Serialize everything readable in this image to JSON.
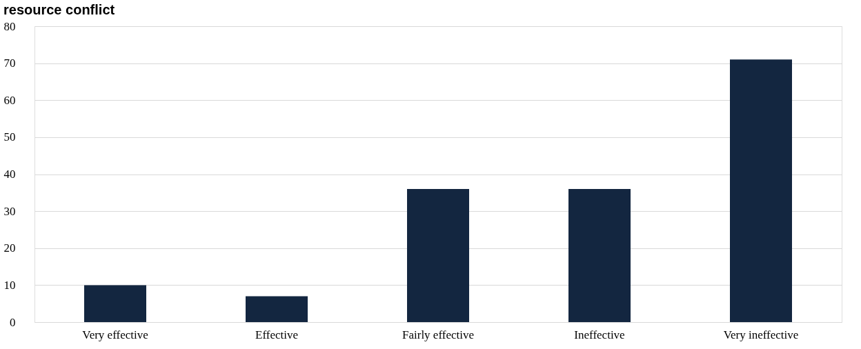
{
  "chart_data": {
    "type": "bar",
    "title": "resource conflict",
    "categories": [
      "Very effective",
      "Effective",
      "Fairly effective",
      "Ineffective",
      "Very ineffective"
    ],
    "values": [
      10,
      7,
      36,
      36,
      71
    ],
    "color": "#132640",
    "ylim": [
      0,
      80
    ],
    "yticks": [
      0,
      10,
      20,
      30,
      40,
      50,
      60,
      70,
      80
    ],
    "grid": "y"
  }
}
